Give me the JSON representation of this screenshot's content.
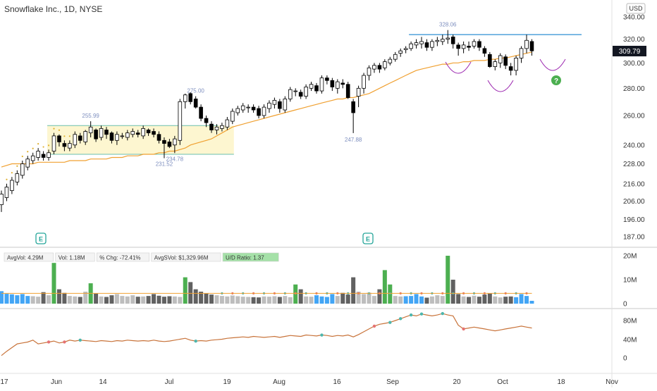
{
  "header": {
    "symbol_title": "Snowflake Inc., 1D, NYSE",
    "currency": "USD",
    "last_price_label": "309.79"
  },
  "price_axis_ticks": [
    "340.00",
    "320.00",
    "300.00",
    "280.00",
    "260.00",
    "240.00",
    "228.00",
    "216.00",
    "206.00",
    "196.00",
    "187.00"
  ],
  "volume_axis_ticks": [
    "20M",
    "10M",
    "0"
  ],
  "rs_axis_ticks": [
    "80M",
    "40M",
    "0"
  ],
  "date_ticks": [
    "17",
    "Jun",
    "14",
    "Jul",
    "19",
    "Aug",
    "16",
    "Sep",
    "20",
    "Oct",
    "18",
    "Nov"
  ],
  "volume_stats": [
    {
      "label": "AvgVol: 4.29M",
      "highlight": false
    },
    {
      "label": "Vol: 1.18M",
      "highlight": false
    },
    {
      "label": "% Chg: -72.41%",
      "highlight": false
    },
    {
      "label": "AvgSVol: $1,329.96M",
      "highlight": false
    },
    {
      "label": "U/D Ratio: 1.37",
      "highlight": true
    }
  ],
  "annotations": {
    "high_1": "255.99",
    "low_1": "231.52",
    "low_2": "234.78",
    "high_2": "275.00",
    "low_3": "247.88",
    "high_3": "328.06",
    "question_mark": "?"
  },
  "earnings_markers": [
    "E",
    "E"
  ],
  "colors": {
    "up": "#ffffff",
    "down": "#000000",
    "ma": "#f0a030",
    "resistance": "#2e8fd4",
    "base_fill": "#fdf6d0",
    "vol_green": "#4caf50",
    "vol_blue": "#42a5f5",
    "vol_dark": "#616161",
    "vol_light": "#bdbdbd",
    "rs_line": "#c8733a",
    "cup": "#9c27b0"
  },
  "chart_data": {
    "type": "candlestick",
    "x": [
      "May 17",
      "May 18",
      "May 19",
      "May 20",
      "May 21",
      "May 24",
      "May 25",
      "May 26",
      "May 27",
      "May 28",
      "Jun 1",
      "Jun 2",
      "Jun 3",
      "Jun 4",
      "Jun 7",
      "Jun 8",
      "Jun 9",
      "Jun 10",
      "Jun 11",
      "Jun 14",
      "Jun 15",
      "Jun 16",
      "Jun 17",
      "Jun 18",
      "Jun 21",
      "Jun 22",
      "Jun 23",
      "Jun 24",
      "Jun 25",
      "Jun 28",
      "Jun 29",
      "Jun 30",
      "Jul 1",
      "Jul 2",
      "Jul 6",
      "Jul 7",
      "Jul 8",
      "Jul 9",
      "Jul 12",
      "Jul 13",
      "Jul 14",
      "Jul 15",
      "Jul 16",
      "Jul 19",
      "Jul 20",
      "Jul 21",
      "Jul 22",
      "Jul 23",
      "Jul 26",
      "Jul 27",
      "Jul 28",
      "Jul 29",
      "Jul 30",
      "Aug 2",
      "Aug 3",
      "Aug 4",
      "Aug 5",
      "Aug 6",
      "Aug 9",
      "Aug 10",
      "Aug 11",
      "Aug 12",
      "Aug 13",
      "Aug 16",
      "Aug 17",
      "Aug 18",
      "Aug 19",
      "Aug 20",
      "Aug 23",
      "Aug 24",
      "Aug 25",
      "Aug 26",
      "Aug 27",
      "Aug 30",
      "Aug 31",
      "Sep 1",
      "Sep 2",
      "Sep 3",
      "Sep 7",
      "Sep 8",
      "Sep 9",
      "Sep 10",
      "Sep 13",
      "Sep 14",
      "Sep 15",
      "Sep 16",
      "Sep 17",
      "Sep 20",
      "Sep 21",
      "Sep 22",
      "Sep 23",
      "Sep 24",
      "Sep 27",
      "Sep 28",
      "Sep 29",
      "Sep 30",
      "Oct 1",
      "Oct 4",
      "Oct 5",
      "Oct 6",
      "Oct 7",
      "Oct 8"
    ],
    "open": [
      204,
      208,
      212,
      217,
      221,
      226,
      230,
      232,
      234,
      232,
      236,
      246,
      241,
      238,
      240,
      246,
      242,
      248,
      250,
      245,
      250,
      248,
      243,
      246,
      245,
      247,
      248,
      246,
      250,
      249,
      247,
      243,
      242,
      240,
      243,
      270,
      276,
      272,
      266,
      258,
      254,
      250,
      251,
      252,
      256,
      262,
      264,
      266,
      266,
      265,
      260,
      265,
      268,
      270,
      264,
      272,
      278,
      277,
      274,
      280,
      282,
      278,
      288,
      286,
      280,
      284,
      283,
      270,
      274,
      280,
      290,
      295,
      298,
      296,
      300,
      303,
      308,
      311,
      312,
      315,
      316,
      317,
      313,
      318,
      318,
      320,
      322,
      315,
      312,
      314,
      314,
      318,
      312,
      307,
      297,
      300,
      305,
      297,
      294,
      304,
      312,
      318
    ],
    "close": [
      210,
      214,
      218,
      222,
      228,
      231,
      233,
      236,
      232,
      235,
      246,
      242,
      239,
      241,
      247,
      243,
      249,
      252,
      244,
      251,
      247,
      243,
      247,
      246,
      248,
      249,
      247,
      251,
      248,
      247,
      243,
      241,
      239,
      244,
      270,
      275,
      270,
      266,
      258,
      255,
      250,
      252,
      253,
      257,
      263,
      265,
      267,
      266,
      264,
      260,
      266,
      269,
      271,
      265,
      272,
      279,
      278,
      274,
      281,
      283,
      278,
      288,
      286,
      281,
      285,
      283,
      273,
      262,
      280,
      290,
      296,
      298,
      295,
      301,
      303,
      307,
      310,
      312,
      316,
      317,
      318,
      313,
      318,
      319,
      320,
      321,
      316,
      312,
      315,
      313,
      318,
      313,
      308,
      297,
      301,
      306,
      298,
      294,
      304,
      312,
      319,
      310
    ],
    "high": [
      212,
      216,
      220,
      224,
      230,
      233,
      235,
      238,
      236,
      237,
      248,
      247,
      243,
      243,
      249,
      248,
      250,
      255.99,
      251,
      253,
      252,
      249,
      249,
      248,
      250,
      251,
      250,
      253,
      251,
      251,
      249,
      245,
      244,
      246,
      272,
      276,
      277,
      274,
      268,
      260,
      256,
      254,
      255,
      259,
      265,
      267,
      269,
      268,
      268,
      267,
      268,
      271,
      273,
      272,
      274,
      281,
      280,
      279,
      283,
      285,
      284,
      290,
      290,
      288,
      287,
      287,
      285,
      272,
      282,
      292,
      298,
      300,
      300,
      303,
      305,
      309,
      312,
      314,
      318,
      320,
      322,
      320,
      320,
      322,
      324,
      328.06,
      324,
      317,
      318,
      318,
      320,
      320,
      314,
      309,
      303,
      308,
      307,
      300,
      306,
      314,
      324,
      320
    ],
    "low": [
      200,
      206,
      210,
      215,
      219,
      224,
      228,
      230,
      230,
      230,
      234,
      239,
      236,
      236,
      238,
      241,
      240,
      245,
      242,
      243,
      244,
      241,
      240,
      244,
      243,
      245,
      245,
      244,
      246,
      245,
      241,
      231.52,
      238,
      234.78,
      240,
      265,
      268,
      265,
      256,
      252,
      248,
      247,
      249,
      250,
      254,
      260,
      262,
      262,
      262,
      258,
      258,
      262,
      265,
      262,
      262,
      270,
      274,
      272,
      272,
      278,
      276,
      276,
      283,
      278,
      276,
      280,
      272,
      247.88,
      266,
      276,
      286,
      292,
      292,
      294,
      298,
      301,
      305,
      308,
      310,
      312,
      312,
      310,
      310,
      314,
      315,
      316,
      312,
      306,
      308,
      310,
      312,
      310,
      305,
      296,
      294,
      296,
      295,
      290,
      290,
      300,
      308,
      306
    ],
    "volume": [
      5.2,
      4.1,
      3.9,
      3.5,
      4.0,
      3.2,
      3.1,
      2.9,
      4.8,
      3.5,
      17.0,
      6.0,
      4.5,
      3.2,
      3.0,
      2.8,
      5.0,
      8.5,
      4.2,
      3.0,
      2.8,
      3.5,
      4.0,
      3.2,
      3.0,
      3.5,
      2.9,
      3.0,
      3.2,
      4.0,
      3.3,
      2.9,
      3.1,
      3.0,
      2.8,
      11.0,
      9.0,
      6.0,
      5.0,
      4.2,
      3.8,
      3.5,
      3.2,
      3.0,
      3.4,
      3.1,
      2.9,
      2.8,
      2.7,
      2.6,
      3.0,
      2.9,
      3.1,
      2.8,
      3.2,
      2.7,
      8.0,
      6.0,
      3.0,
      2.9,
      3.5,
      3.0,
      2.8,
      4.0,
      3.2,
      4.5,
      3.8,
      11.0,
      5.0,
      4.0,
      4.6,
      3.2,
      6.0,
      14.0,
      8.0,
      3.2,
      3.0,
      3.1,
      3.2,
      4.0,
      3.0,
      2.5,
      3.0,
      3.5,
      3.2,
      20.0,
      10.0,
      4.0,
      3.0,
      2.8,
      3.3,
      2.9,
      3.8,
      4.2,
      3.0,
      2.6,
      2.9,
      3.0,
      2.7,
      4.0,
      3.2,
      1.18
    ],
    "ma_50": [
      226,
      227,
      228,
      228,
      228,
      228,
      228,
      229,
      229,
      229,
      229,
      229,
      229,
      230,
      230,
      230,
      230,
      231,
      231,
      231,
      231,
      232,
      232,
      232,
      233,
      233,
      233,
      234,
      234,
      234,
      235,
      235,
      236,
      236,
      237,
      238,
      240,
      241,
      242,
      243,
      244,
      246,
      248,
      250,
      252,
      253,
      254,
      255,
      256,
      257,
      258,
      259,
      260,
      261,
      262,
      263,
      264,
      265,
      266,
      267,
      268,
      269,
      270,
      271,
      272,
      272,
      273,
      273,
      274,
      275,
      276,
      278,
      280,
      282,
      284,
      286,
      288,
      290,
      292,
      294,
      295,
      296,
      297,
      298,
      299,
      299,
      300,
      300,
      301,
      301,
      302,
      302,
      302,
      303,
      303,
      304,
      304,
      305,
      306,
      307,
      308,
      309
    ],
    "rs_line": [
      5,
      14,
      22,
      30,
      32,
      34,
      38,
      30,
      32,
      34,
      36,
      32,
      34,
      38,
      36,
      38,
      37,
      36,
      35,
      37,
      36,
      35,
      37,
      36,
      38,
      37,
      36,
      37,
      36,
      38,
      36,
      35,
      36,
      38,
      40,
      42,
      38,
      36,
      37,
      36,
      38,
      39,
      40,
      42,
      43,
      44,
      45,
      44,
      46,
      45,
      44,
      45,
      46,
      44,
      46,
      48,
      47,
      46,
      49,
      48,
      47,
      49,
      48,
      46,
      48,
      47,
      49,
      45,
      50,
      56,
      62,
      68,
      72,
      74,
      76,
      80,
      84,
      88,
      92,
      90,
      94,
      92,
      90,
      92,
      95,
      92,
      90,
      70,
      62,
      64,
      66,
      64,
      62,
      60,
      58,
      60,
      62,
      64,
      66,
      68,
      66,
      64
    ],
    "resistance_level": 324,
    "base_top": 253,
    "base_bottom": 234,
    "ylim": [
      183,
      345
    ]
  }
}
